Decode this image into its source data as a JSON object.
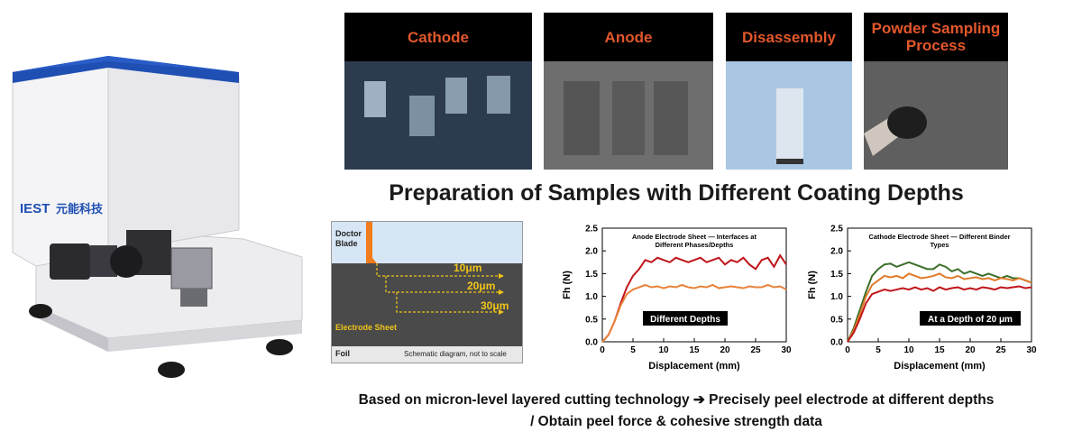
{
  "instrument": {
    "brand": "IEST",
    "brand_cn": "元能科技"
  },
  "photos": [
    {
      "label": "Cathode"
    },
    {
      "label": "Anode"
    },
    {
      "label": "Disassembly"
    },
    {
      "label": "Powder Sampling Process"
    }
  ],
  "main_title": "Preparation of Samples with Different Coating Depths",
  "schematic": {
    "doctor_blade": "Doctor Blade",
    "depths": [
      "10μm",
      "20μm",
      "30μm"
    ],
    "electrode_sheet": "Electrode Sheet",
    "foil": "Foil",
    "note": "Schematic diagram, not to scale"
  },
  "chart_data": [
    {
      "type": "line",
      "title": "Anode Electrode Sheet — Interfaces at Different Phases/Depths",
      "xlabel": "Displacement (mm)",
      "ylabel": "Fh (N)",
      "xlim": [
        0,
        30
      ],
      "ylim": [
        0,
        2.5
      ],
      "xticks": [
        0,
        5,
        10,
        15,
        20,
        25,
        30
      ],
      "yticks": [
        0.0,
        0.5,
        1.0,
        1.5,
        2.0,
        2.5
      ],
      "annotation": "Different Depths",
      "series": [
        {
          "color": "#c0151a",
          "x": [
            0,
            1,
            2,
            3,
            4,
            5,
            6,
            7,
            8,
            9,
            10,
            11,
            12,
            13,
            14,
            15,
            16,
            17,
            18,
            19,
            20,
            21,
            22,
            23,
            24,
            25,
            26,
            27,
            28,
            29,
            30
          ],
          "y": [
            0,
            0.15,
            0.45,
            0.85,
            1.2,
            1.45,
            1.6,
            1.8,
            1.75,
            1.85,
            1.8,
            1.75,
            1.85,
            1.8,
            1.75,
            1.8,
            1.85,
            1.75,
            1.8,
            1.85,
            1.7,
            1.8,
            1.75,
            1.85,
            1.7,
            1.6,
            1.8,
            1.85,
            1.65,
            1.9,
            1.7
          ]
        },
        {
          "color": "#e8833a",
          "x": [
            0,
            1,
            2,
            3,
            4,
            5,
            6,
            7,
            8,
            9,
            10,
            11,
            12,
            13,
            14,
            15,
            16,
            17,
            18,
            19,
            20,
            21,
            22,
            23,
            24,
            25,
            26,
            27,
            28,
            29,
            30
          ],
          "y": [
            0,
            0.15,
            0.45,
            0.8,
            1.05,
            1.15,
            1.2,
            1.25,
            1.2,
            1.22,
            1.18,
            1.22,
            1.2,
            1.25,
            1.2,
            1.18,
            1.22,
            1.2,
            1.25,
            1.18,
            1.2,
            1.22,
            1.2,
            1.18,
            1.22,
            1.2,
            1.2,
            1.25,
            1.2,
            1.22,
            1.15
          ]
        }
      ]
    },
    {
      "type": "line",
      "title": "Cathode Electrode Sheet — Different Binder Types",
      "xlabel": "Displacement (mm)",
      "ylabel": "Fh (N)",
      "xlim": [
        0,
        30
      ],
      "ylim": [
        0,
        2.5
      ],
      "xticks": [
        0,
        5,
        10,
        15,
        20,
        25,
        30
      ],
      "yticks": [
        0.0,
        0.5,
        1.0,
        1.5,
        2.0,
        2.5
      ],
      "annotation": "At a Depth of 20 μm",
      "series": [
        {
          "color": "#3c6e2a",
          "x": [
            0,
            1,
            2,
            3,
            4,
            5,
            6,
            7,
            8,
            9,
            10,
            11,
            12,
            13,
            14,
            15,
            16,
            17,
            18,
            19,
            20,
            21,
            22,
            23,
            24,
            25,
            26,
            27,
            28,
            29,
            30
          ],
          "y": [
            0,
            0.3,
            0.7,
            1.1,
            1.45,
            1.6,
            1.7,
            1.72,
            1.65,
            1.7,
            1.75,
            1.7,
            1.65,
            1.6,
            1.6,
            1.7,
            1.65,
            1.55,
            1.6,
            1.5,
            1.55,
            1.5,
            1.45,
            1.5,
            1.45,
            1.4,
            1.45,
            1.4,
            1.4,
            1.35,
            1.3
          ]
        },
        {
          "color": "#e07a2a",
          "x": [
            0,
            1,
            2,
            3,
            4,
            5,
            6,
            7,
            8,
            9,
            10,
            11,
            12,
            13,
            14,
            15,
            16,
            17,
            18,
            19,
            20,
            21,
            22,
            23,
            24,
            25,
            26,
            27,
            28,
            29,
            30
          ],
          "y": [
            0,
            0.25,
            0.6,
            1.0,
            1.25,
            1.35,
            1.45,
            1.42,
            1.45,
            1.4,
            1.5,
            1.45,
            1.4,
            1.42,
            1.45,
            1.5,
            1.42,
            1.4,
            1.45,
            1.38,
            1.4,
            1.42,
            1.38,
            1.4,
            1.35,
            1.4,
            1.38,
            1.35,
            1.4,
            1.35,
            1.3
          ]
        },
        {
          "color": "#c0151a",
          "x": [
            0,
            1,
            2,
            3,
            4,
            5,
            6,
            7,
            8,
            9,
            10,
            11,
            12,
            13,
            14,
            15,
            16,
            17,
            18,
            19,
            20,
            21,
            22,
            23,
            24,
            25,
            26,
            27,
            28,
            29,
            30
          ],
          "y": [
            0,
            0.2,
            0.5,
            0.85,
            1.05,
            1.1,
            1.15,
            1.12,
            1.15,
            1.18,
            1.15,
            1.2,
            1.15,
            1.18,
            1.12,
            1.2,
            1.15,
            1.18,
            1.2,
            1.15,
            1.18,
            1.15,
            1.2,
            1.18,
            1.15,
            1.2,
            1.18,
            1.2,
            1.22,
            1.18,
            1.2
          ]
        }
      ]
    }
  ],
  "caption": {
    "line1": "Based on micron-level layered cutting technology ➔ Precisely peel electrode at different depths",
    "line2": "/ Obtain peel force & cohesive strength data"
  }
}
